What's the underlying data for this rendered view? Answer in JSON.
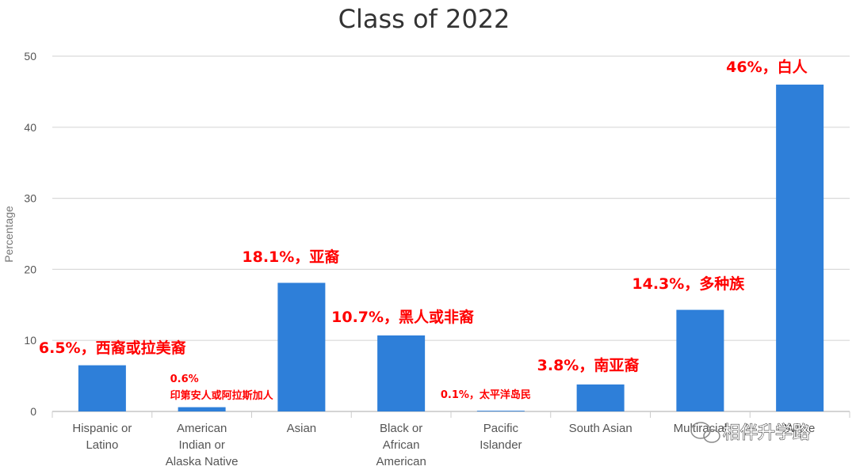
{
  "chart_data": {
    "type": "bar",
    "title": "Class of 2022",
    "ylabel": "Percentage",
    "xlabel": "",
    "ylim": [
      0,
      50
    ],
    "yticks": [
      0,
      10,
      20,
      30,
      40,
      50
    ],
    "grid": true,
    "bar_color": "#2e7fd9",
    "categories": [
      [
        "Hispanic or",
        "Latino"
      ],
      [
        "American",
        "Indian or",
        "Alaska Native"
      ],
      [
        "Asian"
      ],
      [
        "Black or",
        "African",
        "American"
      ],
      [
        "Pacific",
        "Islander"
      ],
      [
        "South Asian"
      ],
      [
        "Multiracial"
      ],
      [
        "White"
      ]
    ],
    "values": [
      6.5,
      0.6,
      18.1,
      10.7,
      0.1,
      3.8,
      14.3,
      46
    ],
    "annotations": [
      [
        "6.5%，西裔或拉美裔"
      ],
      [
        "0.6%",
        "印第安人或阿拉斯加人"
      ],
      [
        "18.1%，亚裔"
      ],
      [
        "10.7%，黑人或非裔"
      ],
      [
        "0.1%，太平洋岛民"
      ],
      [
        "3.8%，南亚裔"
      ],
      [
        "14.3%，多种族"
      ],
      [
        "46%，白人"
      ]
    ],
    "annotation_color": "#ff0000"
  },
  "watermark": {
    "icon": "wechat-icon",
    "text": "相伴升学路"
  }
}
